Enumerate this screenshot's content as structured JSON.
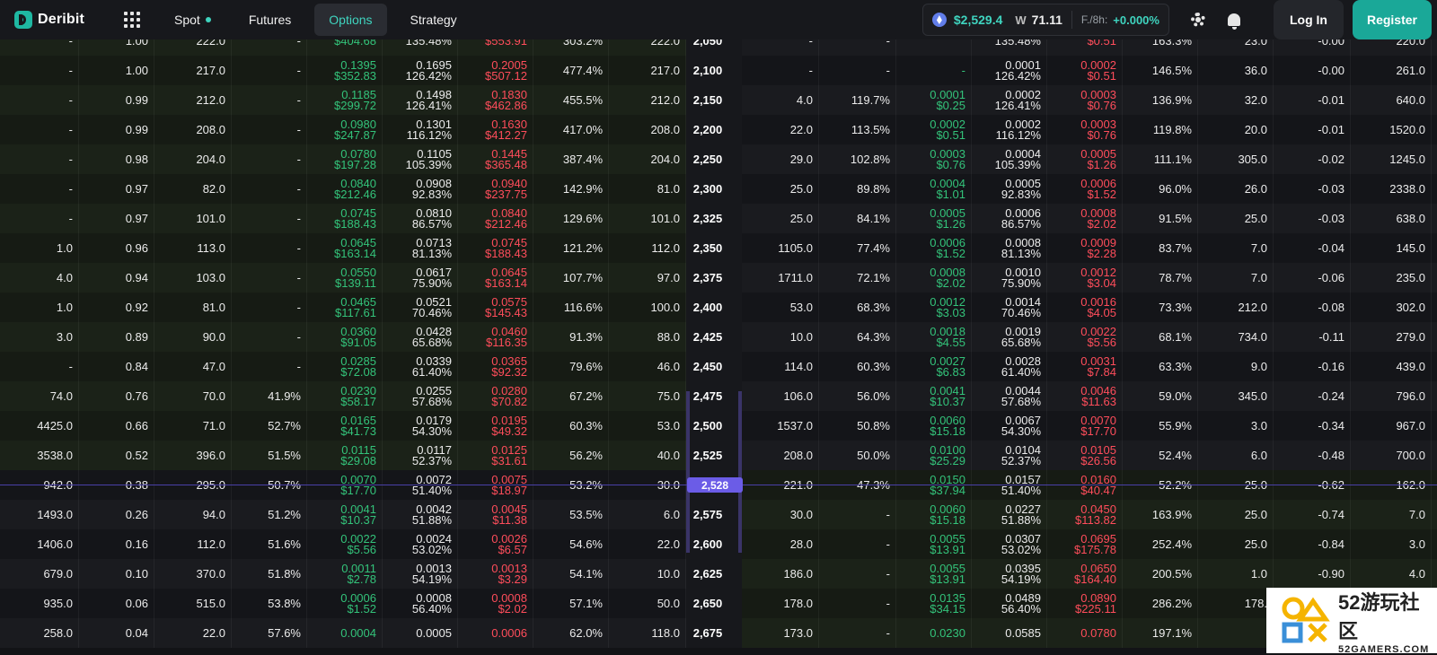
{
  "brand": {
    "name": "Deribit"
  },
  "nav": [
    {
      "label": "Spot",
      "active": false,
      "dot": true
    },
    {
      "label": "Futures",
      "active": false
    },
    {
      "label": "Options",
      "active": true
    },
    {
      "label": "Strategy",
      "active": false
    }
  ],
  "ticker": {
    "price": "$2,529.4",
    "vol_label": "71.11",
    "funding_label": "F./8h:",
    "funding": "+0.000%"
  },
  "auth": {
    "login": "Log In",
    "register": "Register"
  },
  "atm_marker": "2,528",
  "rows": [
    {
      "strike": "2,050",
      "calls": [
        "-",
        "1.00",
        "222.0",
        "-",
        [
          "",
          "$404.68"
        ],
        [
          "",
          "135.48%"
        ],
        [
          "",
          "$553.91"
        ],
        "303.2%",
        "222.0"
      ],
      "puts": [
        "-",
        "-",
        [
          "",
          ""
        ],
        [
          "",
          "135.48%"
        ],
        [
          "",
          "$0.51"
        ],
        "163.3%",
        "23.0",
        "-0.00",
        "220.0"
      ]
    },
    {
      "strike": "2,100",
      "calls": [
        "-",
        "1.00",
        "217.0",
        "-",
        [
          "0.1395",
          "$352.83"
        ],
        [
          "0.1695",
          "126.42%"
        ],
        [
          "0.2005",
          "$507.12"
        ],
        "477.4%",
        "217.0"
      ],
      "puts": [
        "-",
        "-",
        [
          "-",
          ""
        ],
        [
          "0.0001",
          "126.42%"
        ],
        [
          "0.0002",
          "$0.51"
        ],
        "146.5%",
        "36.0",
        "-0.00",
        "261.0"
      ]
    },
    {
      "strike": "2,150",
      "calls": [
        "-",
        "0.99",
        "212.0",
        "-",
        [
          "0.1185",
          "$299.72"
        ],
        [
          "0.1498",
          "126.41%"
        ],
        [
          "0.1830",
          "$462.86"
        ],
        "455.5%",
        "212.0"
      ],
      "puts": [
        "4.0",
        "119.7%",
        [
          "0.0001",
          "$0.25"
        ],
        [
          "0.0002",
          "126.41%"
        ],
        [
          "0.0003",
          "$0.76"
        ],
        "136.9%",
        "32.0",
        "-0.01",
        "640.0"
      ]
    },
    {
      "strike": "2,200",
      "calls": [
        "-",
        "0.99",
        "208.0",
        "-",
        [
          "0.0980",
          "$247.87"
        ],
        [
          "0.1301",
          "116.12%"
        ],
        [
          "0.1630",
          "$412.27"
        ],
        "417.0%",
        "208.0"
      ],
      "puts": [
        "22.0",
        "113.5%",
        [
          "0.0002",
          "$0.51"
        ],
        [
          "0.0002",
          "116.12%"
        ],
        [
          "0.0003",
          "$0.76"
        ],
        "119.8%",
        "20.0",
        "-0.01",
        "1520.0"
      ]
    },
    {
      "strike": "2,250",
      "calls": [
        "-",
        "0.98",
        "204.0",
        "-",
        [
          "0.0780",
          "$197.28"
        ],
        [
          "0.1105",
          "105.39%"
        ],
        [
          "0.1445",
          "$365.48"
        ],
        "387.4%",
        "204.0"
      ],
      "puts": [
        "29.0",
        "102.8%",
        [
          "0.0003",
          "$0.76"
        ],
        [
          "0.0004",
          "105.39%"
        ],
        [
          "0.0005",
          "$1.26"
        ],
        "111.1%",
        "305.0",
        "-0.02",
        "1245.0"
      ]
    },
    {
      "strike": "2,300",
      "calls": [
        "-",
        "0.97",
        "82.0",
        "-",
        [
          "0.0840",
          "$212.46"
        ],
        [
          "0.0908",
          "92.83%"
        ],
        [
          "0.0940",
          "$237.75"
        ],
        "142.9%",
        "81.0"
      ],
      "puts": [
        "25.0",
        "89.8%",
        [
          "0.0004",
          "$1.01"
        ],
        [
          "0.0005",
          "92.83%"
        ],
        [
          "0.0006",
          "$1.52"
        ],
        "96.0%",
        "26.0",
        "-0.03",
        "2338.0"
      ]
    },
    {
      "strike": "2,325",
      "calls": [
        "-",
        "0.97",
        "101.0",
        "-",
        [
          "0.0745",
          "$188.43"
        ],
        [
          "0.0810",
          "86.57%"
        ],
        [
          "0.0840",
          "$212.46"
        ],
        "129.6%",
        "101.0"
      ],
      "puts": [
        "25.0",
        "84.1%",
        [
          "0.0005",
          "$1.26"
        ],
        [
          "0.0006",
          "86.57%"
        ],
        [
          "0.0008",
          "$2.02"
        ],
        "91.5%",
        "25.0",
        "-0.03",
        "638.0"
      ]
    },
    {
      "strike": "2,350",
      "calls": [
        "1.0",
        "0.96",
        "113.0",
        "-",
        [
          "0.0645",
          "$163.14"
        ],
        [
          "0.0713",
          "81.13%"
        ],
        [
          "0.0745",
          "$188.43"
        ],
        "121.2%",
        "112.0"
      ],
      "puts": [
        "1105.0",
        "77.4%",
        [
          "0.0006",
          "$1.52"
        ],
        [
          "0.0008",
          "81.13%"
        ],
        [
          "0.0009",
          "$2.28"
        ],
        "83.7%",
        "7.0",
        "-0.04",
        "145.0"
      ]
    },
    {
      "strike": "2,375",
      "calls": [
        "4.0",
        "0.94",
        "103.0",
        "-",
        [
          "0.0550",
          "$139.11"
        ],
        [
          "0.0617",
          "75.90%"
        ],
        [
          "0.0645",
          "$163.14"
        ],
        "107.7%",
        "97.0"
      ],
      "puts": [
        "1711.0",
        "72.1%",
        [
          "0.0008",
          "$2.02"
        ],
        [
          "0.0010",
          "75.90%"
        ],
        [
          "0.0012",
          "$3.04"
        ],
        "78.7%",
        "7.0",
        "-0.06",
        "235.0"
      ]
    },
    {
      "strike": "2,400",
      "calls": [
        "1.0",
        "0.92",
        "81.0",
        "-",
        [
          "0.0465",
          "$117.61"
        ],
        [
          "0.0521",
          "70.46%"
        ],
        [
          "0.0575",
          "$145.43"
        ],
        "116.6%",
        "100.0"
      ],
      "puts": [
        "53.0",
        "68.3%",
        [
          "0.0012",
          "$3.03"
        ],
        [
          "0.0014",
          "70.46%"
        ],
        [
          "0.0016",
          "$4.05"
        ],
        "73.3%",
        "212.0",
        "-0.08",
        "302.0"
      ]
    },
    {
      "strike": "2,425",
      "calls": [
        "3.0",
        "0.89",
        "90.0",
        "-",
        [
          "0.0360",
          "$91.05"
        ],
        [
          "0.0428",
          "65.68%"
        ],
        [
          "0.0460",
          "$116.35"
        ],
        "91.3%",
        "88.0"
      ],
      "puts": [
        "10.0",
        "64.3%",
        [
          "0.0018",
          "$4.55"
        ],
        [
          "0.0019",
          "65.68%"
        ],
        [
          "0.0022",
          "$5.56"
        ],
        "68.1%",
        "734.0",
        "-0.11",
        "279.0"
      ]
    },
    {
      "strike": "2,450",
      "calls": [
        "-",
        "0.84",
        "47.0",
        "-",
        [
          "0.0285",
          "$72.08"
        ],
        [
          "0.0339",
          "61.40%"
        ],
        [
          "0.0365",
          "$92.32"
        ],
        "79.6%",
        "46.0"
      ],
      "puts": [
        "114.0",
        "60.3%",
        [
          "0.0027",
          "$6.83"
        ],
        [
          "0.0028",
          "61.40%"
        ],
        [
          "0.0031",
          "$7.84"
        ],
        "63.3%",
        "9.0",
        "-0.16",
        "439.0"
      ]
    },
    {
      "strike": "2,475",
      "calls": [
        "74.0",
        "0.76",
        "70.0",
        "41.9%",
        [
          "0.0230",
          "$58.17"
        ],
        [
          "0.0255",
          "57.68%"
        ],
        [
          "0.0280",
          "$70.82"
        ],
        "67.2%",
        "75.0"
      ],
      "puts": [
        "106.0",
        "56.0%",
        [
          "0.0041",
          "$10.37"
        ],
        [
          "0.0044",
          "57.68%"
        ],
        [
          "0.0046",
          "$11.63"
        ],
        "59.0%",
        "345.0",
        "-0.24",
        "796.0"
      ]
    },
    {
      "strike": "2,500",
      "calls": [
        "4425.0",
        "0.66",
        "71.0",
        "52.7%",
        [
          "0.0165",
          "$41.73"
        ],
        [
          "0.0179",
          "54.30%"
        ],
        [
          "0.0195",
          "$49.32"
        ],
        "60.3%",
        "53.0"
      ],
      "puts": [
        "1537.0",
        "50.8%",
        [
          "0.0060",
          "$15.18"
        ],
        [
          "0.0067",
          "54.30%"
        ],
        [
          "0.0070",
          "$17.70"
        ],
        "55.9%",
        "3.0",
        "-0.34",
        "967.0"
      ]
    },
    {
      "strike": "2,525",
      "calls": [
        "3538.0",
        "0.52",
        "396.0",
        "51.5%",
        [
          "0.0115",
          "$29.08"
        ],
        [
          "0.0117",
          "52.37%"
        ],
        [
          "0.0125",
          "$31.61"
        ],
        "56.2%",
        "40.0"
      ],
      "puts": [
        "208.0",
        "50.0%",
        [
          "0.0100",
          "$25.29"
        ],
        [
          "0.0104",
          "52.37%"
        ],
        [
          "0.0105",
          "$26.56"
        ],
        "52.4%",
        "6.0",
        "-0.48",
        "700.0"
      ]
    },
    {
      "strike": "2,550",
      "calls": [
        "942.0",
        "0.38",
        "295.0",
        "50.7%",
        [
          "0.0070",
          "$17.70"
        ],
        [
          "0.0072",
          "51.40%"
        ],
        [
          "0.0075",
          "$18.97"
        ],
        "53.2%",
        "30.0"
      ],
      "puts": [
        "221.0",
        "47.3%",
        [
          "0.0150",
          "$37.94"
        ],
        [
          "0.0157",
          "51.40%"
        ],
        [
          "0.0160",
          "$40.47"
        ],
        "52.2%",
        "25.0",
        "-0.62",
        "162.0"
      ]
    },
    {
      "strike": "2,575",
      "calls": [
        "1493.0",
        "0.26",
        "94.0",
        "51.2%",
        [
          "0.0041",
          "$10.37"
        ],
        [
          "0.0042",
          "51.88%"
        ],
        [
          "0.0045",
          "$11.38"
        ],
        "53.5%",
        "6.0"
      ],
      "puts": [
        "30.0",
        "-",
        [
          "0.0060",
          "$15.18"
        ],
        [
          "0.0227",
          "51.88%"
        ],
        [
          "0.0450",
          "$113.82"
        ],
        "163.9%",
        "25.0",
        "-0.74",
        "7.0"
      ]
    },
    {
      "strike": "2,600",
      "calls": [
        "1406.0",
        "0.16",
        "112.0",
        "51.6%",
        [
          "0.0022",
          "$5.56"
        ],
        [
          "0.0024",
          "53.02%"
        ],
        [
          "0.0026",
          "$6.57"
        ],
        "54.6%",
        "22.0"
      ],
      "puts": [
        "28.0",
        "-",
        [
          "0.0055",
          "$13.91"
        ],
        [
          "0.0307",
          "53.02%"
        ],
        [
          "0.0695",
          "$175.78"
        ],
        "252.4%",
        "25.0",
        "-0.84",
        "3.0"
      ]
    },
    {
      "strike": "2,625",
      "calls": [
        "679.0",
        "0.10",
        "370.0",
        "51.8%",
        [
          "0.0011",
          "$2.78"
        ],
        [
          "0.0013",
          "54.19%"
        ],
        [
          "0.0013",
          "$3.29"
        ],
        "54.1%",
        "10.0"
      ],
      "puts": [
        "186.0",
        "-",
        [
          "0.0055",
          "$13.91"
        ],
        [
          "0.0395",
          "54.19%"
        ],
        [
          "0.0650",
          "$164.40"
        ],
        "200.5%",
        "1.0",
        "-0.90",
        "4.0"
      ]
    },
    {
      "strike": "2,650",
      "calls": [
        "935.0",
        "0.06",
        "515.0",
        "53.8%",
        [
          "0.0006",
          "$1.52"
        ],
        [
          "0.0008",
          "56.40%"
        ],
        [
          "0.0008",
          "$2.02"
        ],
        "57.1%",
        "50.0"
      ],
      "puts": [
        "178.0",
        "-",
        [
          "0.0135",
          "$34.15"
        ],
        [
          "0.0489",
          "56.40%"
        ],
        [
          "0.0890",
          "$225.11"
        ],
        "286.2%",
        "178.",
        "",
        ""
      ]
    },
    {
      "strike": "2,675",
      "calls": [
        "258.0",
        "0.04",
        "22.0",
        "57.6%",
        [
          "0.0004",
          ""
        ],
        [
          "0.0005",
          ""
        ],
        [
          "0.0006",
          ""
        ],
        "62.0%",
        "118.0"
      ],
      "puts": [
        "173.0",
        "-",
        [
          "0.0230",
          ""
        ],
        [
          "0.0585",
          ""
        ],
        [
          "0.0780",
          ""
        ],
        "197.1%",
        "",
        "",
        ""
      ]
    }
  ],
  "watermark": {
    "big": "52游玩社区",
    "small": "52GAMERS.COM"
  }
}
